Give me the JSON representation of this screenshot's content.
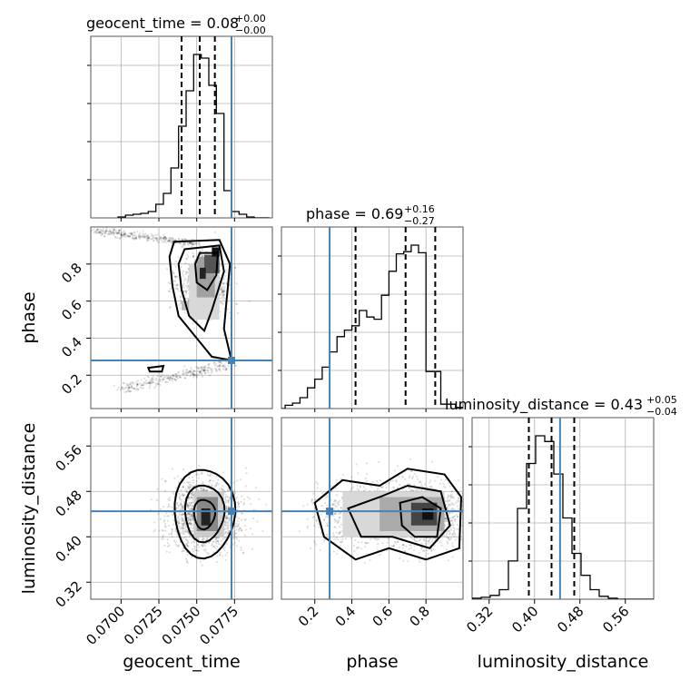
{
  "chart_data": {
    "type": "corner",
    "parameters": [
      "geocent_time",
      "phase",
      "luminosity_distance"
    ],
    "truth": {
      "geocent_time": 0.0773,
      "phase": 0.28,
      "luminosity_distance": 0.445
    },
    "axis_ranges": {
      "geocent_time": [
        0.068,
        0.08
      ],
      "phase": [
        0.02,
        1.0
      ],
      "luminosity_distance": [
        0.29,
        0.61
      ]
    },
    "ticks": {
      "geocent_time": [
        "0.0700",
        "0.0725",
        "0.0750",
        "0.0775"
      ],
      "phase": [
        "0.2",
        "0.4",
        "0.6",
        "0.8"
      ],
      "luminosity_distance": [
        "0.32",
        "0.40",
        "0.48",
        "0.56"
      ]
    },
    "diag": [
      {
        "param": "geocent_time",
        "title": {
          "main": "geocent_time = 0.08",
          "sup": "+0.00",
          "sub": "−0.00"
        },
        "quantiles": [
          0.074,
          0.0752,
          0.0762
        ],
        "bins_x0": 0.0698,
        "bin_width": 0.0005,
        "hist": [
          1,
          3,
          4,
          5,
          7,
          15,
          27,
          55,
          101,
          140,
          180,
          176,
          146,
          115,
          30,
          7,
          4,
          1,
          0,
          0
        ]
      },
      {
        "param": "phase",
        "title": {
          "main": "phase = 0.69",
          "sup": "+0.16",
          "sub": "−0.27"
        },
        "quantiles": [
          0.42,
          0.69,
          0.85
        ],
        "bins_x0": 0.0,
        "bin_width": 0.04,
        "hist": [
          0,
          3,
          5,
          10,
          19,
          27,
          38,
          52,
          66,
          72,
          76,
          90,
          84,
          82,
          104,
          126,
          142,
          144,
          150,
          143,
          34,
          34,
          4,
          4,
          1
        ]
      },
      {
        "param": "luminosity_distance",
        "title": {
          "main": "luminosity_distance = 0.43",
          "sup": "+0.05",
          "sub": "−0.04"
        },
        "quantiles": [
          0.39,
          0.43,
          0.47
        ],
        "bins_x0": 0.29,
        "bin_width": 0.016,
        "hist": [
          1,
          2,
          4,
          10,
          40,
          95,
          142,
          171,
          165,
          131,
          85,
          48,
          25,
          10,
          3,
          1,
          0,
          0,
          0,
          0
        ]
      }
    ],
    "grid": true
  }
}
